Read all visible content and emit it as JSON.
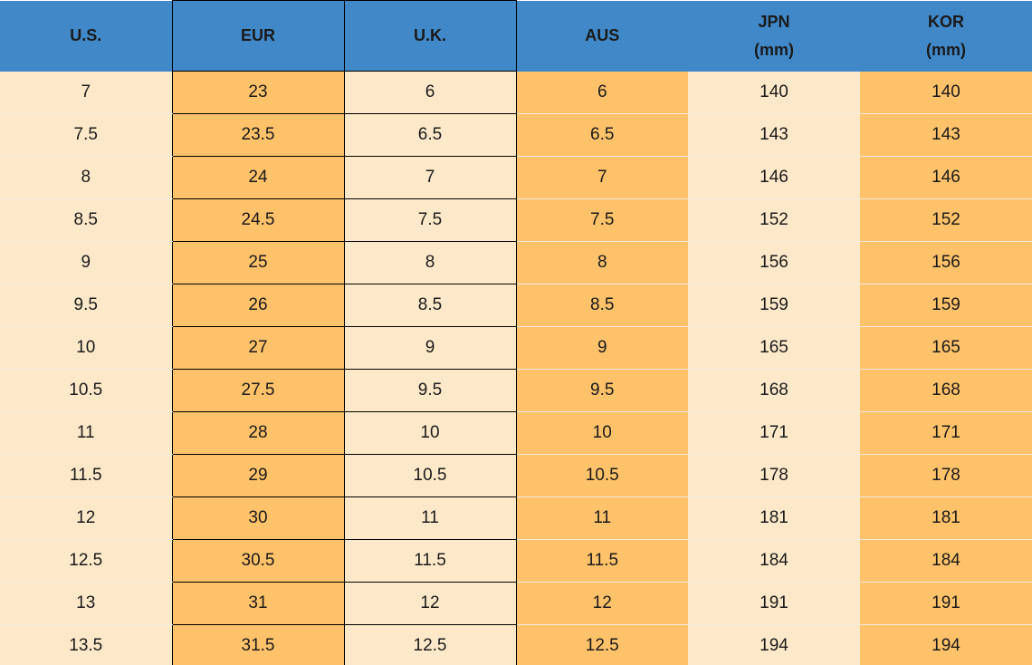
{
  "table": {
    "header": [
      "U.S.",
      "EUR",
      "U.K.",
      "AUS",
      "JPN\n(mm)",
      "KOR\n(mm)"
    ],
    "rows": [
      [
        "7",
        "23",
        "6",
        "6",
        "140",
        "140"
      ],
      [
        "7.5",
        "23.5",
        "6.5",
        "6.5",
        "143",
        "143"
      ],
      [
        "8",
        "24",
        "7",
        "7",
        "146",
        "146"
      ],
      [
        "8.5",
        "24.5",
        "7.5",
        "7.5",
        "152",
        "152"
      ],
      [
        "9",
        "25",
        "8",
        "8",
        "156",
        "156"
      ],
      [
        "9.5",
        "26",
        "8.5",
        "8.5",
        "159",
        "159"
      ],
      [
        "10",
        "27",
        "9",
        "9",
        "165",
        "165"
      ],
      [
        "10.5",
        "27.5",
        "9.5",
        "9.5",
        "168",
        "168"
      ],
      [
        "11",
        "28",
        "10",
        "10",
        "171",
        "171"
      ],
      [
        "11.5",
        "29",
        "10.5",
        "10.5",
        "178",
        "178"
      ],
      [
        "12",
        "30",
        "11",
        "11",
        "181",
        "181"
      ],
      [
        "12.5",
        "30.5",
        "11.5",
        "11.5",
        "184",
        "184"
      ],
      [
        "13",
        "31",
        "12",
        "12",
        "191",
        "191"
      ],
      [
        "13.5",
        "31.5",
        "12.5",
        "12.5",
        "194",
        "194"
      ]
    ]
  }
}
